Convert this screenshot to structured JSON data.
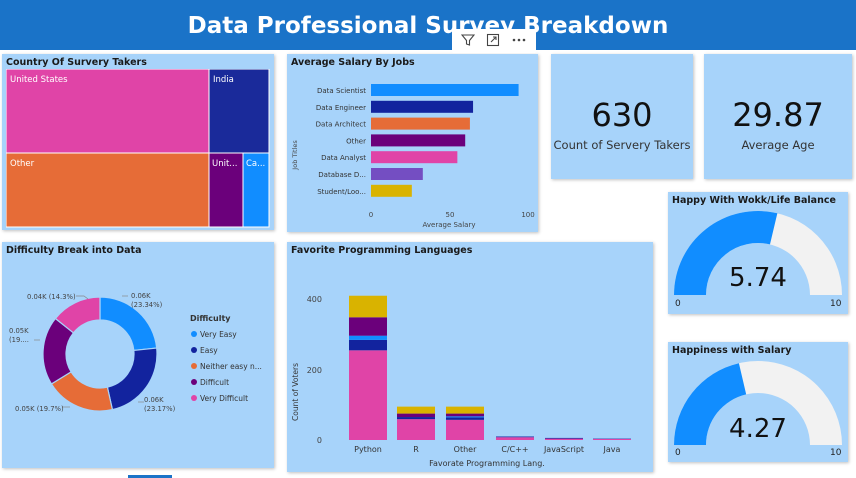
{
  "header": {
    "title": "Data Professional Survey Breakdown"
  },
  "toolbar": {
    "filter_icon": "filter-icon",
    "focus_icon": "focus-mode-icon",
    "more_icon": "more-options-icon"
  },
  "treemap": {
    "title": "Country Of Survery Takers",
    "cells": [
      {
        "label": "United States",
        "color": "#e044a7"
      },
      {
        "label": "India",
        "color": "#1a2a9a"
      },
      {
        "label": "Other",
        "color": "#e66c37"
      },
      {
        "label": "Unit...",
        "color": "#6b007b"
      },
      {
        "label": "Ca...",
        "color": "#118dff"
      }
    ]
  },
  "salary": {
    "title": "Average Salary By Jobs",
    "x_title": "Average Salary",
    "y_title": "Job Titles",
    "x_ticks": [
      "0",
      "50",
      "100"
    ]
  },
  "kpi_count": {
    "value": "630",
    "label": "Count of Servery Takers"
  },
  "kpi_age": {
    "value": "29.87",
    "label": "Average Age"
  },
  "difficulty": {
    "title": "Difficulty Break into Data",
    "legend_title": "Difficulty",
    "labels": [
      "0.06K",
      "(23.34%)",
      "0.06K",
      "(23.17%)",
      "0.05K (19.7%)",
      "0.05K",
      "(19....",
      "0.04K (14.3%)"
    ]
  },
  "languages": {
    "title": "Favorite Programming Languages",
    "y_title": "Count of Voters",
    "x_title": "Favorate Programming Lang.",
    "y_ticks": [
      "0",
      "200",
      "400"
    ]
  },
  "gauge_life": {
    "title": "Happy With Wokk/Life Balance",
    "value": "5.74",
    "min": "0",
    "max": "10",
    "fraction": 0.574
  },
  "gauge_salary": {
    "title": "Happiness with Salary",
    "value": "4.27",
    "min": "0",
    "max": "10",
    "fraction": 0.427
  },
  "chart_data": [
    {
      "type": "bar",
      "title": "Average Salary By Jobs",
      "xlabel": "Average Salary",
      "ylabel": "Job Titles",
      "orientation": "horizontal",
      "categories": [
        "Data Scientist",
        "Data Engineer",
        "Data Architect",
        "Other",
        "Data Analyst",
        "Database D...",
        "Student/Loo..."
      ],
      "values": [
        94,
        65,
        63,
        60,
        55,
        33,
        26
      ],
      "colors": [
        "#118dff",
        "#12239e",
        "#e66c37",
        "#6b007b",
        "#e044a7",
        "#744ec2",
        "#d9b300"
      ],
      "xlim": [
        0,
        100
      ]
    },
    {
      "type": "pie",
      "title": "Difficulty Break into Data",
      "donut": true,
      "categories": [
        "Very Easy",
        "Easy",
        "Neither easy n...",
        "Difficult",
        "Very Difficult"
      ],
      "values": [
        23.34,
        23.17,
        19.7,
        19.5,
        14.3
      ],
      "colors": [
        "#118dff",
        "#12239e",
        "#e66c37",
        "#6b007b",
        "#e044a7"
      ],
      "legend": "right"
    },
    {
      "type": "bar",
      "title": "Favorite Programming Languages",
      "stacked": true,
      "xlabel": "Favorate Programming Lang.",
      "ylabel": "Count of Voters",
      "categories": [
        "Python",
        "R",
        "Other",
        "C/C++",
        "JavaScript",
        "Java"
      ],
      "ylim": [
        0,
        450
      ],
      "series": [
        {
          "values": [
            258,
            60,
            58,
            8,
            4,
            3
          ],
          "color": "#e044a7"
        },
        {
          "values": [
            30,
            6,
            7,
            2,
            2,
            1
          ],
          "color": "#12239e"
        },
        {
          "values": [
            12,
            0,
            3,
            0,
            0,
            0
          ],
          "color": "#118dff"
        },
        {
          "values": [
            53,
            10,
            8,
            0,
            0,
            0
          ],
          "color": "#6b007b"
        },
        {
          "values": [
            62,
            20,
            20,
            0,
            0,
            0
          ],
          "color": "#d9b300"
        }
      ]
    }
  ]
}
